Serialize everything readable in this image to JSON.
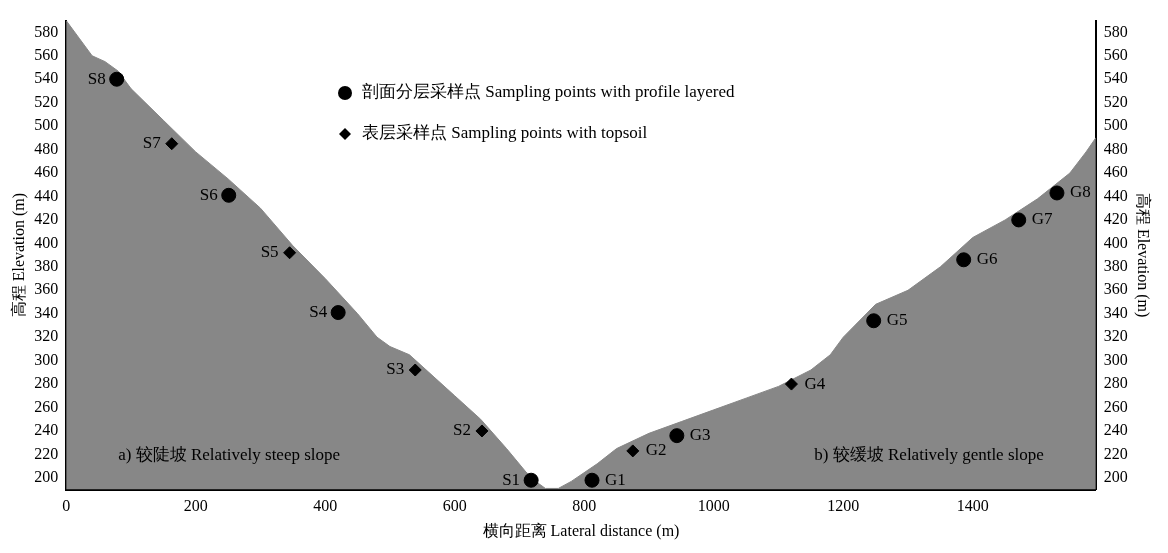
{
  "chart_data": {
    "type": "area",
    "xlabel": "横向距离 Lateral distance (m)",
    "ylabel": "高程 Elevation (m)",
    "y2label": "高程 Elevation (m)",
    "xlim": [
      0,
      1590
    ],
    "xticks": [
      0,
      200,
      400,
      600,
      800,
      1000,
      1200,
      1400
    ],
    "ylim": [
      190,
      590
    ],
    "yticks": [
      200,
      220,
      240,
      260,
      280,
      300,
      320,
      340,
      360,
      380,
      400,
      420,
      440,
      460,
      480,
      500,
      520,
      540,
      560,
      580
    ],
    "y2lim": [
      190,
      590
    ],
    "y2ticks": [
      200,
      220,
      240,
      260,
      280,
      300,
      320,
      340,
      360,
      380,
      400,
      420,
      440,
      460,
      480,
      500,
      520,
      540,
      560,
      580
    ],
    "grid": false,
    "legend": "top",
    "series": [
      {
        "color": "#878787",
        "x": [
          0,
          20,
          40,
          60,
          80,
          100,
          150,
          200,
          250,
          300,
          350,
          400,
          450,
          480,
          500,
          530,
          560,
          600,
          640,
          680,
          710,
          730,
          740,
          760,
          780,
          820,
          850,
          900,
          950,
          1000,
          1050,
          1100,
          1150,
          1180,
          1200,
          1250,
          1300,
          1350,
          1400,
          1450,
          1500,
          1550,
          1575,
          1590
        ],
        "values": [
          590,
          575,
          560,
          555,
          547,
          532,
          505,
          478,
          455,
          430,
          398,
          370,
          340,
          320,
          312,
          305,
          290,
          270,
          250,
          225,
          205,
          195,
          191,
          191,
          197,
          212,
          225,
          238,
          248,
          258,
          268,
          278,
          292,
          305,
          320,
          348,
          360,
          380,
          405,
          420,
          438,
          460,
          478,
          490
        ]
      },
      {
        "type": "scatter",
        "name": "剖面分层采样点 Sampling points with profile layered",
        "color": "#000000",
        "marker": "circle",
        "x": [
          78,
          251,
          420,
          718,
          812,
          943,
          1247,
          1386,
          1471,
          1530
        ],
        "values": [
          540,
          441,
          341,
          198,
          198,
          236,
          334,
          386,
          420,
          443
        ]
      },
      {
        "type": "scatter",
        "name": "表层采样点 Sampling points with topsoil",
        "color": "#000000",
        "marker": "diamond",
        "x": [
          163,
          345,
          539,
          642,
          875,
          1120
        ],
        "values": [
          485,
          392,
          292,
          240,
          223,
          280
        ]
      }
    ],
    "annotations": [
      {
        "text": "S8",
        "x": 78,
        "y": 540
      },
      {
        "text": "S7",
        "x": 163,
        "y": 485
      },
      {
        "text": "S6",
        "x": 251,
        "y": 441
      },
      {
        "text": "S5",
        "x": 345,
        "y": 392
      },
      {
        "text": "S4",
        "x": 420,
        "y": 341
      },
      {
        "text": "S3",
        "x": 539,
        "y": 292
      },
      {
        "text": "S2",
        "x": 642,
        "y": 240
      },
      {
        "text": "S1",
        "x": 718,
        "y": 198
      },
      {
        "text": "G1",
        "x": 812,
        "y": 198
      },
      {
        "text": "G2",
        "x": 875,
        "y": 223
      },
      {
        "text": "G3",
        "x": 943,
        "y": 236
      },
      {
        "text": "G4",
        "x": 1120,
        "y": 280
      },
      {
        "text": "G5",
        "x": 1247,
        "y": 334
      },
      {
        "text": "G6",
        "x": 1386,
        "y": 386
      },
      {
        "text": "G7",
        "x": 1471,
        "y": 420
      },
      {
        "text": "G8",
        "x": 1530,
        "y": 443
      },
      "a) 较陡坡 Relatively steep slope",
      "b) 较缓坡 Relatively gentle slope"
    ]
  }
}
